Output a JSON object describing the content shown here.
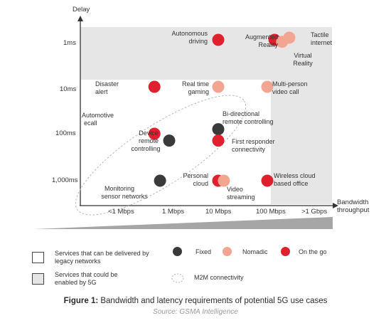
{
  "chart_data": {
    "type": "scatter",
    "xlabel": "Bandwidth throughput",
    "ylabel": "Delay",
    "x_ticks": [
      "<1 Mbps",
      "1 Mbps",
      "10 Mbps",
      "100 Mbps",
      ">1 Gbps"
    ],
    "y_ticks": [
      "1ms",
      "10ms",
      "100ms",
      "1,000ms"
    ],
    "legend_placement": "bottom",
    "category_colors": {
      "Fixed": "#3a3a3a",
      "Nomadic": "#f2a590",
      "On the go": "#e0202e"
    },
    "points": [
      {
        "name": "Autonomous driving",
        "x": 10,
        "y": 1,
        "category": "On the go"
      },
      {
        "name": "Augmented Reality",
        "x": 140,
        "y": 1,
        "category": "On the go"
      },
      {
        "name": "Virtual Reality",
        "x": 200,
        "y": 1.1,
        "category": "Nomadic"
      },
      {
        "name": "Tactile internet",
        "x": 280,
        "y": 0.9,
        "category": "Nomadic"
      },
      {
        "name": "Disaster alert",
        "x": 0.5,
        "y": 10,
        "category": "On the go"
      },
      {
        "name": "Real time gaming",
        "x": 10,
        "y": 10,
        "category": "Nomadic"
      },
      {
        "name": "Multi-person video call",
        "x": 100,
        "y": 10,
        "category": "Nomadic"
      },
      {
        "name": "Automotive ecall",
        "x": 0.5,
        "y": 100,
        "category": "On the go"
      },
      {
        "name": "Device remote controlling",
        "x": 1,
        "y": 140,
        "category": "Fixed"
      },
      {
        "name": "Bi-directional remote controlling",
        "x": 10,
        "y": 80,
        "category": "Fixed"
      },
      {
        "name": "First responder connectivity",
        "x": 10,
        "y": 140,
        "category": "On the go"
      },
      {
        "name": "Monitoring sensor networks",
        "x": 0.65,
        "y": 1000,
        "category": "Fixed"
      },
      {
        "name": "Personal cloud",
        "x": 10,
        "y": 1000,
        "category": "On the go"
      },
      {
        "name": "Video streaming",
        "x": 13,
        "y": 1000,
        "category": "Nomadic"
      },
      {
        "name": "Wireless cloud based office",
        "x": 100,
        "y": 1000,
        "category": "On the go"
      }
    ]
  },
  "legend": {
    "legacy": "Services that can be delivered by legacy networks",
    "fiveg": "Services that could be enabled by 5G",
    "m2m": "M2M connectivity",
    "fixed": "Fixed",
    "nomadic": "Nomadic",
    "onthego": "On the go"
  },
  "caption": {
    "figure": "Figure 1:",
    "title": " Bandwidth and latency requirements of potential 5G use cases",
    "source": "Source: GSMA Intelligence"
  }
}
